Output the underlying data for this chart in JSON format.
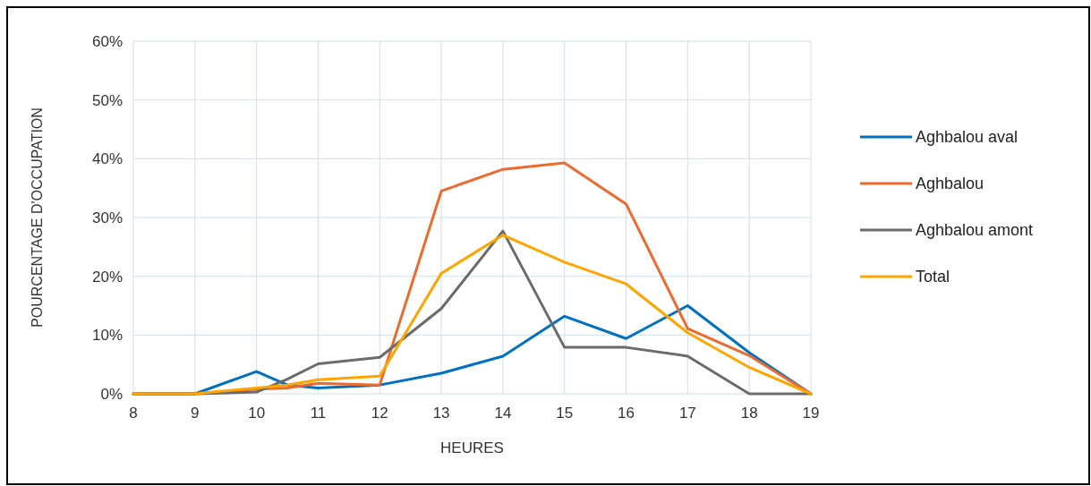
{
  "chart_data": {
    "type": "line",
    "xlabel": "HEURES",
    "ylabel": "POURCENTAGE D'OCCUPATION",
    "x": [
      8,
      9,
      10,
      10.5,
      11,
      12,
      13,
      14,
      15,
      16,
      17,
      18,
      19
    ],
    "series": [
      {
        "name": "Aghbalou aval",
        "color": "#0070c0",
        "values": [
          0,
          0,
          3.8,
          1.5,
          1.0,
          1.5,
          3.5,
          6.4,
          13.2,
          9.4,
          15,
          7,
          0
        ]
      },
      {
        "name": "Aghbalou",
        "color": "#ed6a2f",
        "values": [
          0,
          0,
          0.8,
          1.0,
          1.8,
          1.5,
          34.5,
          38.2,
          39.3,
          32.3,
          11.1,
          6.5,
          0
        ]
      },
      {
        "name": "Aghbalou amont",
        "color": "#6b6b6b",
        "values": [
          0,
          0,
          0.3,
          2.5,
          5.1,
          6.2,
          14.5,
          27.7,
          7.9,
          7.9,
          6.4,
          0,
          0
        ]
      },
      {
        "name": "Total",
        "color": "#ffa500",
        "values": [
          0,
          0,
          1.0,
          1.5,
          2.4,
          3.0,
          20.5,
          27,
          22.4,
          18.7,
          10.4,
          4.5,
          0
        ]
      }
    ],
    "xlim": [
      8,
      19
    ],
    "xticks": [
      8,
      9,
      10,
      11,
      12,
      13,
      14,
      15,
      16,
      17,
      18,
      19
    ],
    "ylim": [
      0,
      60
    ],
    "yticks": [
      {
        "value": 0,
        "label": "0%"
      },
      {
        "value": 10,
        "label": "10%"
      },
      {
        "value": 20,
        "label": "20%"
      },
      {
        "value": 30,
        "label": "30%"
      },
      {
        "value": 40,
        "label": "40%"
      },
      {
        "value": 50,
        "label": "50%"
      },
      {
        "value": 60,
        "label": "60%"
      }
    ],
    "grid": true,
    "legend": "right",
    "marker": "none",
    "line_style": "solid"
  }
}
